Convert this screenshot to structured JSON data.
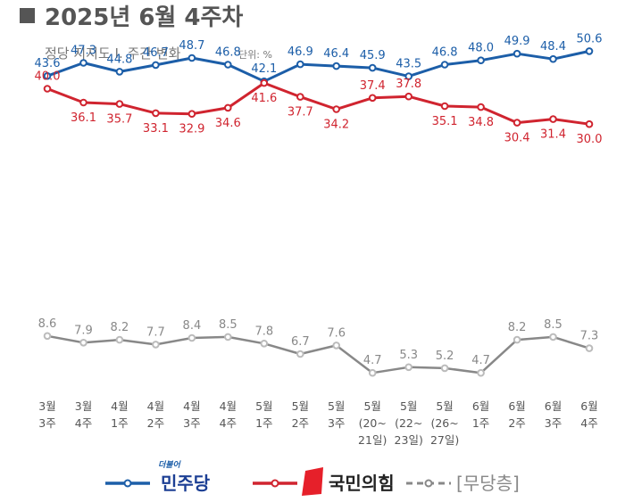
{
  "header": {
    "title": "2025년 6월 4주차",
    "subtitle": "정당 지지도 Ⅰ. 주간 변화",
    "unit": "단위: %"
  },
  "colors": {
    "minjoo": "#1c5ea8",
    "ppp": "#d0242f",
    "independent": "#888888",
    "title_marker": "#555555"
  },
  "chart_data": {
    "type": "line",
    "title": "정당 지지도 Ⅰ. 주간 변화",
    "unit": "%",
    "categories": [
      [
        "3월",
        "3주"
      ],
      [
        "3월",
        "4주"
      ],
      [
        "4월",
        "1주"
      ],
      [
        "4월",
        "2주"
      ],
      [
        "4월",
        "3주"
      ],
      [
        "4월",
        "4주"
      ],
      [
        "5월",
        "1주"
      ],
      [
        "5월",
        "2주"
      ],
      [
        "5월",
        "3주"
      ],
      [
        "5월",
        "(20~",
        "21일)"
      ],
      [
        "5월",
        "(22~",
        "23일)"
      ],
      [
        "5월",
        "(26~",
        "27일)"
      ],
      [
        "6월",
        "1주"
      ],
      [
        "6월",
        "2주"
      ],
      [
        "6월",
        "3주"
      ],
      [
        "6월",
        "4주"
      ]
    ],
    "series": [
      {
        "name": "더불어민주당",
        "key": "minjoo",
        "color": "#1c5ea8",
        "values": [
          43.6,
          47.3,
          44.8,
          46.7,
          48.7,
          46.8,
          42.1,
          46.9,
          46.4,
          45.9,
          43.5,
          46.8,
          48.0,
          49.9,
          48.4,
          50.6
        ]
      },
      {
        "name": "국민의힘",
        "key": "ppp",
        "color": "#d0242f",
        "values": [
          40.0,
          36.1,
          35.7,
          33.1,
          32.9,
          34.6,
          41.6,
          37.7,
          34.2,
          37.4,
          37.8,
          35.1,
          34.8,
          30.4,
          31.4,
          30.0
        ]
      },
      {
        "name": "[무당층]",
        "key": "independent",
        "color": "#888888",
        "values": [
          8.6,
          7.9,
          8.2,
          7.7,
          8.4,
          8.5,
          7.8,
          6.7,
          7.6,
          4.7,
          5.3,
          5.2,
          4.7,
          8.2,
          8.5,
          7.3
        ]
      }
    ]
  },
  "legend": [
    {
      "label_small": "더불어",
      "label": "민주당",
      "key": "minjoo"
    },
    {
      "label": "국민의힘",
      "key": "ppp"
    },
    {
      "label": "[무당층]",
      "key": "independent"
    }
  ]
}
